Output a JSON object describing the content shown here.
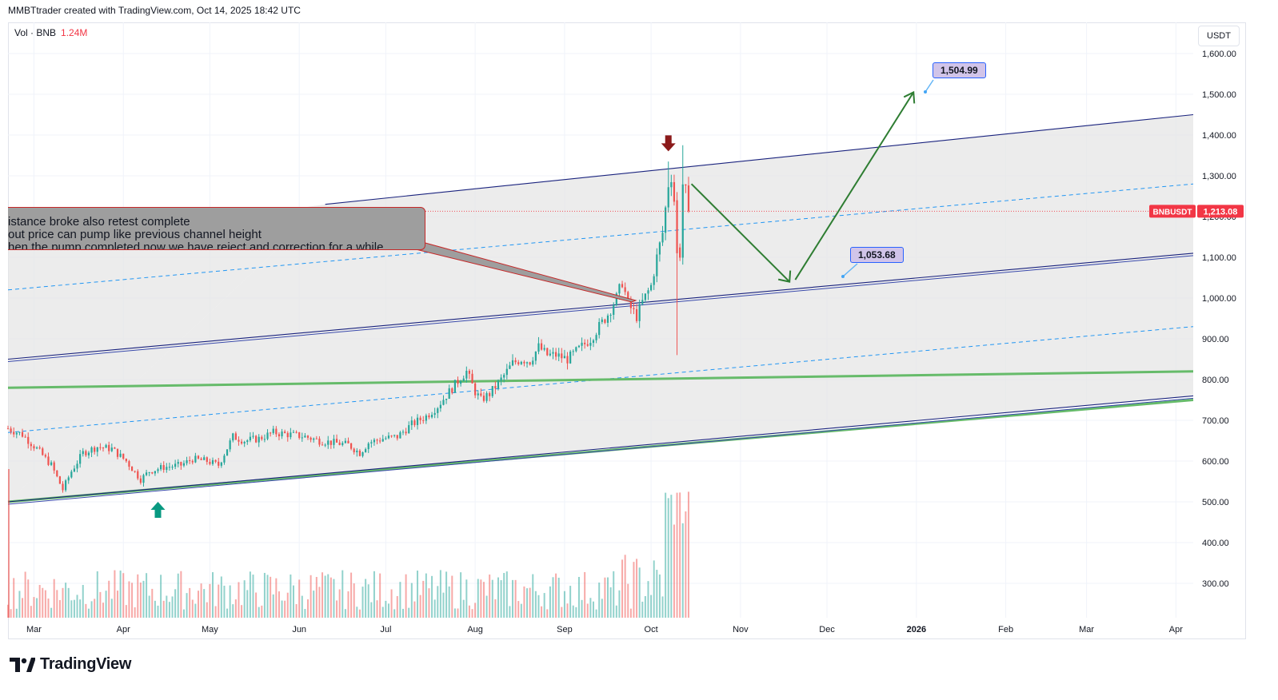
{
  "header": {
    "text": "MMBTtrader created with TradingView.com, Oct 14, 2025 18:42 UTC"
  },
  "legend": {
    "label": "Vol · BNB",
    "value": "1.24M"
  },
  "currency_button": "USDT",
  "brand": {
    "name": "TradingView"
  },
  "note": {
    "lines": [
      "istance broke also retest complete",
      "out price can pump like previous channel height",
      "hen the pump completed now we have reject and correction for a while"
    ]
  },
  "labels": {
    "target_high": "1,504.99",
    "target_low": "1,053.68",
    "symbol": "BNBUSDT",
    "last_price": "1,213.08"
  },
  "colors": {
    "up": "#26a69a",
    "down": "#ef5350",
    "channel": "#1a237e",
    "green_line": "#66bb6a",
    "arrow": "#2e7d32",
    "down_marker": "#8b1a1a",
    "up_marker": "#089981"
  },
  "chart_data": {
    "type": "candlestick",
    "symbol": "BNBUSDT",
    "y_axis": {
      "range": [
        210,
        1660
      ],
      "ticks": [
        300,
        400,
        500,
        600,
        700,
        800,
        900,
        1000,
        1100,
        1200,
        1300,
        1400,
        1500,
        1600
      ],
      "tick_labels": [
        "300.00",
        "400.00",
        "500.00",
        "600.00",
        "700.00",
        "800.00",
        "900.00",
        "1,000.00",
        "1,100.00",
        "1,200.00",
        "1,300.00",
        "1,400.00",
        "1,500.00",
        "1,600.00"
      ]
    },
    "x_axis": {
      "start": "2025-02-20",
      "end": "2026-04-07",
      "ticks": [
        {
          "date": "2025-03-01",
          "label": "Mar"
        },
        {
          "date": "2025-04-01",
          "label": "Apr"
        },
        {
          "date": "2025-05-01",
          "label": "May"
        },
        {
          "date": "2025-06-01",
          "label": "Jun"
        },
        {
          "date": "2025-07-01",
          "label": "Jul"
        },
        {
          "date": "2025-08-01",
          "label": "Aug"
        },
        {
          "date": "2025-09-01",
          "label": "Sep"
        },
        {
          "date": "2025-10-01",
          "label": "Oct"
        },
        {
          "date": "2025-11-01",
          "label": "Nov"
        },
        {
          "date": "2025-12-01",
          "label": "Dec"
        },
        {
          "date": "2026-01-01",
          "label": "2026",
          "bold": true
        },
        {
          "date": "2026-02-01",
          "label": "Feb"
        },
        {
          "date": "2026-03-01",
          "label": "Mar"
        },
        {
          "date": "2026-04-01",
          "label": "Apr"
        }
      ]
    },
    "price_anchors": [
      [
        "2025-02-20",
        680
      ],
      [
        "2025-02-25",
        665
      ],
      [
        "2025-03-02",
        630
      ],
      [
        "2025-03-07",
        590
      ],
      [
        "2025-03-11",
        530
      ],
      [
        "2025-03-14",
        575
      ],
      [
        "2025-03-18",
        620
      ],
      [
        "2025-03-23",
        635
      ],
      [
        "2025-03-28",
        630
      ],
      [
        "2025-04-02",
        600
      ],
      [
        "2025-04-07",
        555
      ],
      [
        "2025-04-10",
        575
      ],
      [
        "2025-04-15",
        585
      ],
      [
        "2025-04-21",
        590
      ],
      [
        "2025-04-25",
        605
      ],
      [
        "2025-04-30",
        600
      ],
      [
        "2025-05-04",
        590
      ],
      [
        "2025-05-09",
        660
      ],
      [
        "2025-05-13",
        650
      ],
      [
        "2025-05-18",
        655
      ],
      [
        "2025-05-23",
        670
      ],
      [
        "2025-05-29",
        665
      ],
      [
        "2025-06-03",
        660
      ],
      [
        "2025-06-08",
        650
      ],
      [
        "2025-06-13",
        645
      ],
      [
        "2025-06-18",
        640
      ],
      [
        "2025-06-22",
        620
      ],
      [
        "2025-06-25",
        645
      ],
      [
        "2025-06-30",
        655
      ],
      [
        "2025-07-05",
        660
      ],
      [
        "2025-07-10",
        690
      ],
      [
        "2025-07-15",
        710
      ],
      [
        "2025-07-19",
        735
      ],
      [
        "2025-07-23",
        770
      ],
      [
        "2025-07-27",
        805
      ],
      [
        "2025-07-29",
        820
      ],
      [
        "2025-08-01",
        770
      ],
      [
        "2025-08-03",
        750
      ],
      [
        "2025-08-06",
        765
      ],
      [
        "2025-08-10",
        800
      ],
      [
        "2025-08-14",
        840
      ],
      [
        "2025-08-17",
        850
      ],
      [
        "2025-08-20",
        845
      ],
      [
        "2025-08-23",
        880
      ],
      [
        "2025-08-26",
        860
      ],
      [
        "2025-08-29",
        860
      ],
      [
        "2025-09-02",
        850
      ],
      [
        "2025-09-06",
        875
      ],
      [
        "2025-09-10",
        900
      ],
      [
        "2025-09-13",
        930
      ],
      [
        "2025-09-16",
        960
      ],
      [
        "2025-09-19",
        1000
      ],
      [
        "2025-09-21",
        1040
      ],
      [
        "2025-09-23",
        985
      ],
      [
        "2025-09-26",
        955
      ],
      [
        "2025-09-28",
        990
      ],
      [
        "2025-10-01",
        1030
      ],
      [
        "2025-10-03",
        1100
      ],
      [
        "2025-10-05",
        1160
      ],
      [
        "2025-10-07",
        1280
      ],
      [
        "2025-10-08",
        1300
      ],
      [
        "2025-10-09",
        1240
      ],
      [
        "2025-10-10",
        1120
      ],
      [
        "2025-10-11",
        1110
      ],
      [
        "2025-10-12",
        1280
      ],
      [
        "2025-10-13",
        1260
      ],
      [
        "2025-10-14",
        1213
      ]
    ],
    "channel_lines": [
      {
        "from": [
          "2025-02-20",
          500
        ],
        "to": [
          "2026-04-07",
          760
        ],
        "style": "double"
      },
      {
        "from": [
          "2025-02-20",
          850
        ],
        "to": [
          "2026-04-07",
          1110
        ],
        "style": "double"
      },
      {
        "from": [
          "2025-06-10",
          1230
        ],
        "to": [
          "2026-04-07",
          1450
        ],
        "style": "single"
      }
    ],
    "dashed_lines": [
      {
        "from": [
          "2025-02-20",
          1020
        ],
        "to": [
          "2026-04-07",
          1280
        ]
      },
      {
        "from": [
          "2025-02-20",
          670
        ],
        "to": [
          "2026-04-07",
          930
        ]
      }
    ],
    "green_lines": [
      {
        "from": [
          "2025-02-20",
          780
        ],
        "to": [
          "2026-04-07",
          820
        ]
      },
      {
        "from": [
          "2025-02-20",
          500
        ],
        "to": [
          "2026-04-07",
          750
        ]
      }
    ],
    "projection": [
      [
        "2025-10-15",
        1280
      ],
      [
        "2025-11-18",
        1040
      ],
      [
        "2025-11-20",
        1045
      ],
      [
        "2025-12-31",
        1505
      ]
    ],
    "annotations": [
      {
        "type": "sell_marker",
        "date": "2025-10-07",
        "price": 1360
      },
      {
        "type": "buy_marker",
        "date": "2025-04-13",
        "price": 500
      }
    ],
    "last_price": 1213.08,
    "volume_label": "Vol · BNB 1.24M"
  }
}
